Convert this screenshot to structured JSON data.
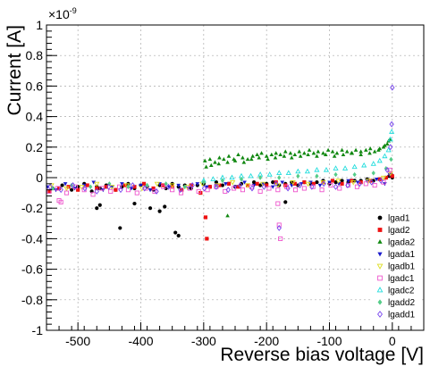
{
  "chart_data": {
    "type": "scatter",
    "title": "",
    "xlabel": "Reverse bias voltage [V]",
    "ylabel": "Current [A]",
    "y_exponent_label": "×10",
    "y_exponent_power": "-9",
    "xlim": [
      -550,
      50
    ],
    "ylim": [
      -1,
      1
    ],
    "x_ticks": [
      -500,
      -400,
      -300,
      -200,
      -100,
      0
    ],
    "x_tick_labels": [
      "-500",
      "-400",
      "-300",
      "-200",
      "-100",
      "0"
    ],
    "y_ticks": [
      -1,
      -0.8,
      -0.6,
      -0.4,
      -0.2,
      0,
      0.2,
      0.4,
      0.6,
      0.8,
      1
    ],
    "y_tick_labels": [
      "-1",
      "-0.8",
      "-0.6",
      "-0.4",
      "-0.2",
      "0",
      "0.2",
      "0.4",
      "0.6",
      "0.8",
      "1"
    ],
    "grid": true,
    "legend_position": "bottom-right",
    "series": [
      {
        "name": "lgad1",
        "color": "#000000",
        "marker": "circle",
        "filled": true,
        "x": [
          -540,
          -525,
          -510,
          -500,
          -490,
          -478,
          -470,
          -465,
          -455,
          -440,
          -430,
          -420,
          -410,
          -400,
          -390,
          -380,
          -370,
          -360,
          -350,
          -340,
          -330,
          -320,
          -310,
          -300,
          -290,
          -280,
          -270,
          -260,
          -250,
          -240,
          -230,
          -220,
          -210,
          -200,
          -190,
          -180,
          -170,
          -160,
          -150,
          -140,
          -130,
          -120,
          -110,
          -100,
          -90,
          -80,
          -70,
          -60,
          -50,
          -40,
          -30,
          -20,
          -10,
          -5,
          -2,
          0,
          -470,
          -465,
          -433,
          -410,
          -385,
          -370,
          -362,
          -345,
          -340,
          -170
        ],
        "y": [
          -0.07,
          -0.05,
          -0.08,
          -0.06,
          -0.04,
          -0.09,
          -0.06,
          -0.07,
          -0.05,
          -0.08,
          -0.06,
          -0.04,
          -0.07,
          -0.05,
          -0.06,
          -0.08,
          -0.05,
          -0.07,
          -0.04,
          -0.06,
          -0.05,
          -0.07,
          -0.05,
          -0.04,
          -0.06,
          -0.03,
          -0.05,
          -0.04,
          -0.06,
          -0.04,
          -0.05,
          -0.03,
          -0.05,
          -0.04,
          -0.03,
          -0.05,
          -0.04,
          -0.03,
          -0.05,
          -0.03,
          -0.04,
          -0.03,
          -0.02,
          -0.04,
          -0.03,
          -0.02,
          -0.03,
          -0.02,
          -0.02,
          -0.01,
          -0.02,
          -0.01,
          0.0,
          0.01,
          0.02,
          0.0,
          -0.2,
          -0.18,
          -0.33,
          -0.17,
          -0.2,
          -0.22,
          -0.19,
          -0.36,
          -0.38,
          -0.16
        ]
      },
      {
        "name": "lgad2",
        "color": "#ee1111",
        "marker": "square",
        "filled": true,
        "x": [
          -545,
          -530,
          -515,
          -500,
          -485,
          -470,
          -455,
          -440,
          -425,
          -410,
          -395,
          -380,
          -365,
          -350,
          -335,
          -320,
          -305,
          -290,
          -275,
          -260,
          -245,
          -230,
          -215,
          -200,
          -185,
          -170,
          -155,
          -140,
          -125,
          -110,
          -95,
          -80,
          -65,
          -50,
          -35,
          -20,
          -10,
          -3,
          0,
          -297,
          -295
        ],
        "y": [
          -0.09,
          -0.07,
          -0.06,
          -0.08,
          -0.05,
          -0.07,
          -0.06,
          -0.08,
          -0.05,
          -0.06,
          -0.04,
          -0.07,
          -0.05,
          -0.06,
          -0.08,
          -0.05,
          -0.1,
          -0.06,
          -0.05,
          -0.04,
          -0.06,
          -0.05,
          -0.04,
          -0.05,
          -0.03,
          -0.05,
          -0.04,
          -0.03,
          -0.04,
          -0.03,
          -0.02,
          -0.04,
          -0.02,
          -0.03,
          -0.02,
          -0.01,
          0.0,
          0.02,
          0.01,
          -0.26,
          -0.4
        ]
      },
      {
        "name": "lgada2",
        "color": "#118811",
        "marker": "triangle-up",
        "filled": true,
        "x": [
          -298,
          -290,
          -282,
          -275,
          -268,
          -260,
          -252,
          -245,
          -238,
          -230,
          -222,
          -215,
          -208,
          -200,
          -192,
          -185,
          -178,
          -170,
          -162,
          -155,
          -148,
          -140,
          -132,
          -125,
          -118,
          -110,
          -102,
          -95,
          -88,
          -80,
          -72,
          -65,
          -58,
          -50,
          -42,
          -35,
          -28,
          -20,
          -14,
          -8,
          -4,
          -296,
          -288,
          -276,
          -262,
          -250,
          -236,
          -224,
          -212,
          -198,
          -186,
          -172,
          -160,
          -146,
          -134,
          -120,
          -106,
          -92,
          -78,
          -64,
          -50,
          -36,
          -22,
          -12,
          -6,
          -262
        ],
        "y": [
          0.11,
          0.12,
          0.1,
          0.13,
          0.12,
          0.14,
          0.12,
          0.15,
          0.13,
          0.12,
          0.14,
          0.15,
          0.16,
          0.14,
          0.15,
          0.16,
          0.15,
          0.17,
          0.16,
          0.15,
          0.17,
          0.16,
          0.18,
          0.16,
          0.17,
          0.16,
          0.18,
          0.17,
          0.16,
          0.18,
          0.17,
          0.16,
          0.18,
          0.17,
          0.18,
          0.19,
          0.17,
          0.19,
          0.2,
          0.22,
          0.25,
          0.07,
          0.08,
          0.09,
          0.1,
          0.11,
          0.1,
          0.12,
          0.13,
          0.12,
          0.13,
          0.14,
          0.13,
          0.14,
          0.15,
          0.14,
          0.15,
          0.14,
          0.15,
          0.16,
          0.15,
          0.16,
          0.18,
          0.21,
          0.24,
          -0.25
        ]
      },
      {
        "name": "lgada1",
        "color": "#1a1acc",
        "marker": "triangle-down",
        "filled": true,
        "x": [
          -548,
          -535,
          -520,
          -505,
          -490,
          -475,
          -460,
          -445,
          -430,
          -415,
          -400,
          -385,
          -370,
          -355,
          -340,
          -325,
          -310,
          -295,
          -280,
          -265,
          -250,
          -235,
          -220,
          -205,
          -190,
          -175,
          -160,
          -145,
          -130,
          -115,
          -100,
          -85,
          -70,
          -55,
          -40,
          -25,
          -12,
          -4
        ],
        "y": [
          -0.06,
          -0.08,
          -0.04,
          -0.07,
          -0.05,
          -0.03,
          -0.08,
          -0.06,
          -0.04,
          -0.07,
          -0.05,
          -0.08,
          -0.04,
          -0.06,
          -0.05,
          -0.07,
          -0.04,
          -0.06,
          -0.05,
          -0.04,
          -0.06,
          -0.03,
          -0.05,
          -0.04,
          -0.06,
          -0.03,
          -0.05,
          -0.04,
          -0.03,
          -0.05,
          -0.03,
          -0.04,
          -0.02,
          -0.03,
          -0.02,
          -0.01,
          -0.04,
          0.02
        ]
      },
      {
        "name": "lgadb1",
        "color": "#dddd22",
        "marker": "triangle-down",
        "filled": false,
        "x": [
          -542,
          -518,
          -494,
          -470,
          -446,
          -422,
          -398,
          -374,
          -350,
          -326,
          -302,
          -278,
          -254,
          -230,
          -206,
          -182,
          -158,
          -134,
          -110,
          -86,
          -62,
          -38,
          -14,
          -3
        ],
        "y": [
          -0.05,
          -0.07,
          -0.06,
          -0.04,
          -0.06,
          -0.05,
          -0.07,
          -0.04,
          -0.05,
          -0.06,
          -0.04,
          -0.05,
          -0.03,
          -0.05,
          -0.04,
          -0.05,
          -0.03,
          -0.04,
          -0.03,
          -0.02,
          -0.03,
          -0.02,
          0.0,
          0.03
        ]
      },
      {
        "name": "lgadc1",
        "color": "#ee55cc",
        "marker": "square",
        "filled": false,
        "x": [
          -546,
          -532,
          -518,
          -504,
          -490,
          -476,
          -462,
          -448,
          -434,
          -420,
          -406,
          -392,
          -378,
          -364,
          -350,
          -336,
          -322,
          -308,
          -294,
          -280,
          -266,
          -252,
          -238,
          -224,
          -210,
          -196,
          -182,
          -168,
          -154,
          -140,
          -126,
          -112,
          -98,
          -84,
          -70,
          -56,
          -42,
          -28,
          -14,
          -4,
          -530,
          -527,
          -182,
          -180,
          -178
        ],
        "y": [
          -0.09,
          -0.07,
          -0.1,
          -0.06,
          -0.08,
          -0.11,
          -0.07,
          -0.09,
          -0.06,
          -0.08,
          -0.1,
          -0.07,
          -0.09,
          -0.06,
          -0.08,
          -0.1,
          -0.07,
          -0.09,
          -0.08,
          -0.06,
          -0.09,
          -0.07,
          -0.08,
          -0.06,
          -0.09,
          -0.07,
          -0.08,
          -0.06,
          -0.08,
          -0.07,
          -0.06,
          -0.08,
          -0.05,
          -0.07,
          -0.05,
          -0.06,
          -0.04,
          -0.05,
          -0.03,
          0.05,
          -0.15,
          -0.16,
          -0.17,
          -0.31,
          -0.4
        ]
      },
      {
        "name": "lgadc2",
        "color": "#22dddd",
        "marker": "triangle-up",
        "filled": false,
        "x": [
          -300,
          -285,
          -270,
          -255,
          -240,
          -225,
          -210,
          -195,
          -180,
          -165,
          -150,
          -135,
          -120,
          -105,
          -90,
          -75,
          -60,
          -45,
          -30,
          -20,
          -12,
          -6,
          -3,
          -1
        ],
        "y": [
          -0.02,
          -0.01,
          0.0,
          0.0,
          0.01,
          0.01,
          0.02,
          0.02,
          0.03,
          0.03,
          0.04,
          0.04,
          0.05,
          0.05,
          0.06,
          0.06,
          0.07,
          0.08,
          0.09,
          0.11,
          0.14,
          0.18,
          0.25,
          0.3
        ]
      },
      {
        "name": "lgadd2",
        "color": "#55cc88",
        "marker": "diamond",
        "filled": true,
        "x": [
          -540,
          -510,
          -480,
          -450,
          -420,
          -390,
          -360,
          -330,
          -300,
          -270,
          -240,
          -210,
          -180,
          -150,
          -120,
          -90,
          -60,
          -30,
          -10,
          -2
        ],
        "y": [
          -0.07,
          -0.05,
          -0.06,
          -0.04,
          -0.06,
          -0.05,
          -0.04,
          -0.06,
          -0.03,
          -0.02,
          -0.01,
          0.0,
          0.0,
          0.01,
          0.01,
          0.02,
          0.02,
          0.03,
          0.06,
          0.12
        ]
      },
      {
        "name": "lgadd1",
        "color": "#7744ee",
        "marker": "diamond",
        "filled": false,
        "x": [
          -544,
          -527,
          -508,
          -489,
          -470,
          -451,
          -432,
          -413,
          -394,
          -375,
          -356,
          -337,
          -318,
          -299,
          -280,
          -261,
          -242,
          -223,
          -204,
          -185,
          -166,
          -147,
          -128,
          -109,
          -90,
          -71,
          -52,
          -33,
          -18,
          -8,
          -3,
          -1,
          0,
          -180
        ],
        "y": [
          -0.06,
          -0.08,
          -0.05,
          -0.07,
          -0.09,
          -0.06,
          -0.08,
          -0.05,
          -0.07,
          -0.09,
          -0.06,
          -0.08,
          -0.05,
          -0.07,
          -0.06,
          -0.08,
          -0.05,
          -0.07,
          -0.06,
          -0.04,
          -0.07,
          -0.05,
          -0.06,
          -0.04,
          -0.06,
          -0.05,
          -0.04,
          -0.03,
          -0.02,
          0.05,
          0.2,
          0.35,
          0.59,
          -0.33
        ]
      }
    ]
  }
}
